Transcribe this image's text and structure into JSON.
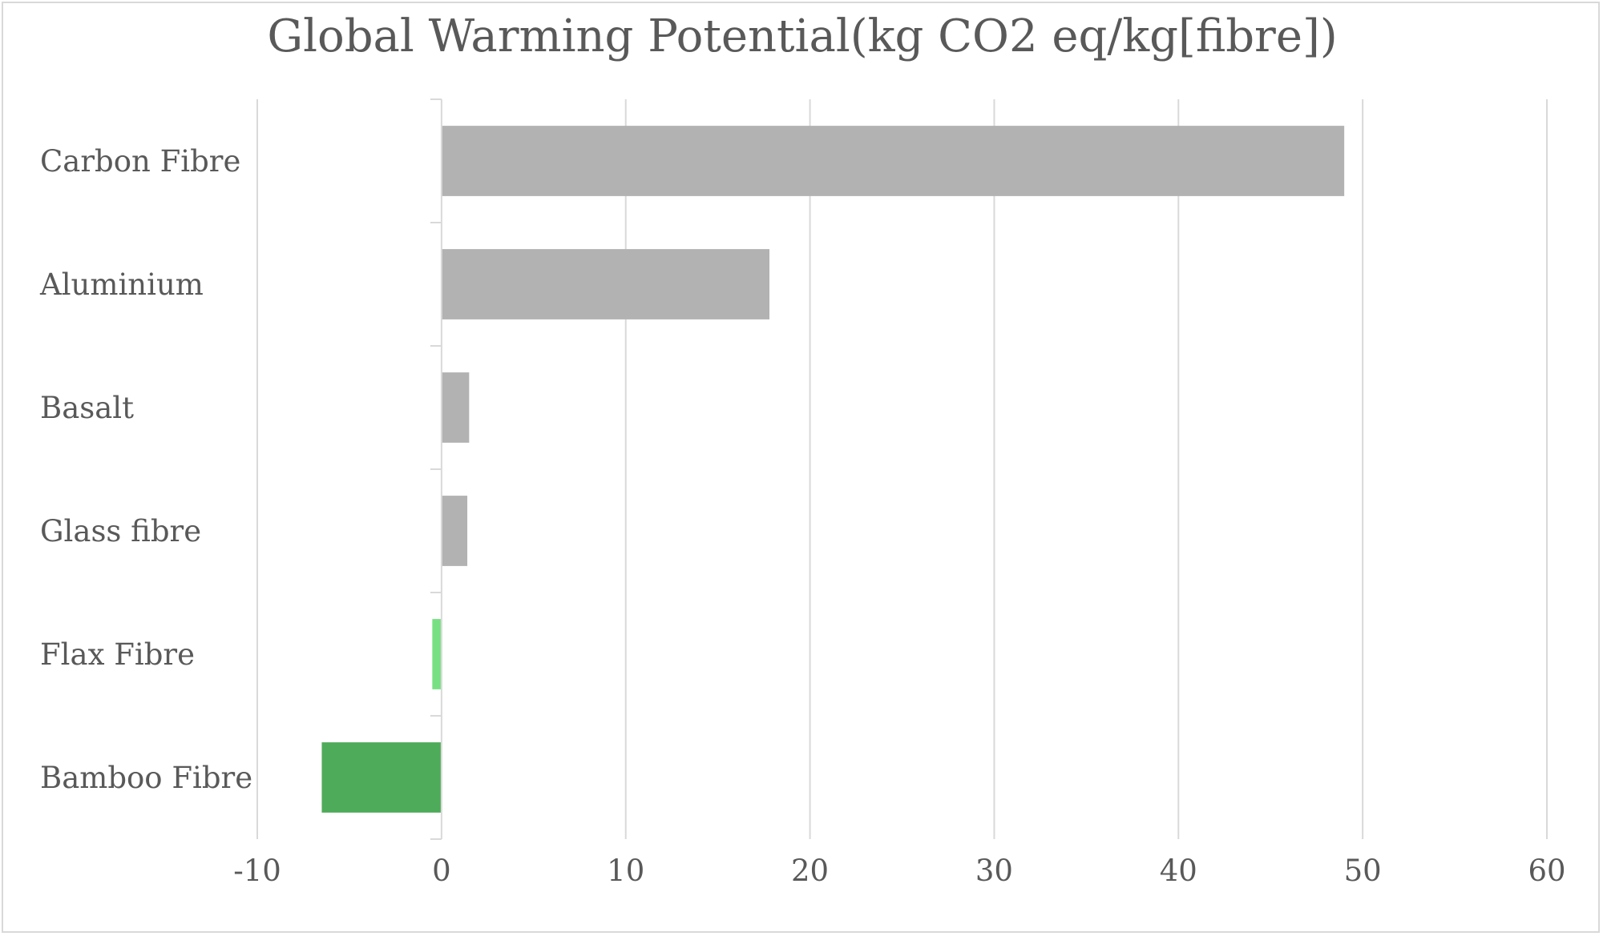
{
  "chart_data": {
    "type": "bar",
    "orientation": "horizontal",
    "title": "Global Warming Potential(kg CO2 eq/kg[fibre])",
    "xlabel": "",
    "ylabel": "",
    "categories": [
      "Carbon Fibre",
      "Aluminium",
      "Basalt",
      "Glass fibre",
      "Flax Fibre",
      "Bamboo Fibre"
    ],
    "values": [
      49,
      17.8,
      1.5,
      1.4,
      -0.5,
      -6.5
    ],
    "bar_colors": [
      "#b2b2b2",
      "#b2b2b2",
      "#b2b2b2",
      "#b2b2b2",
      "#77e083",
      "#4eab5a"
    ],
    "xlim": [
      -10,
      60
    ],
    "ticks": [
      -10,
      0,
      10,
      20,
      30,
      40,
      50,
      60
    ],
    "tick_labels": [
      "-10",
      "0",
      "10",
      "20",
      "30",
      "40",
      "50",
      "60"
    ],
    "grid": true,
    "legend": "none"
  }
}
